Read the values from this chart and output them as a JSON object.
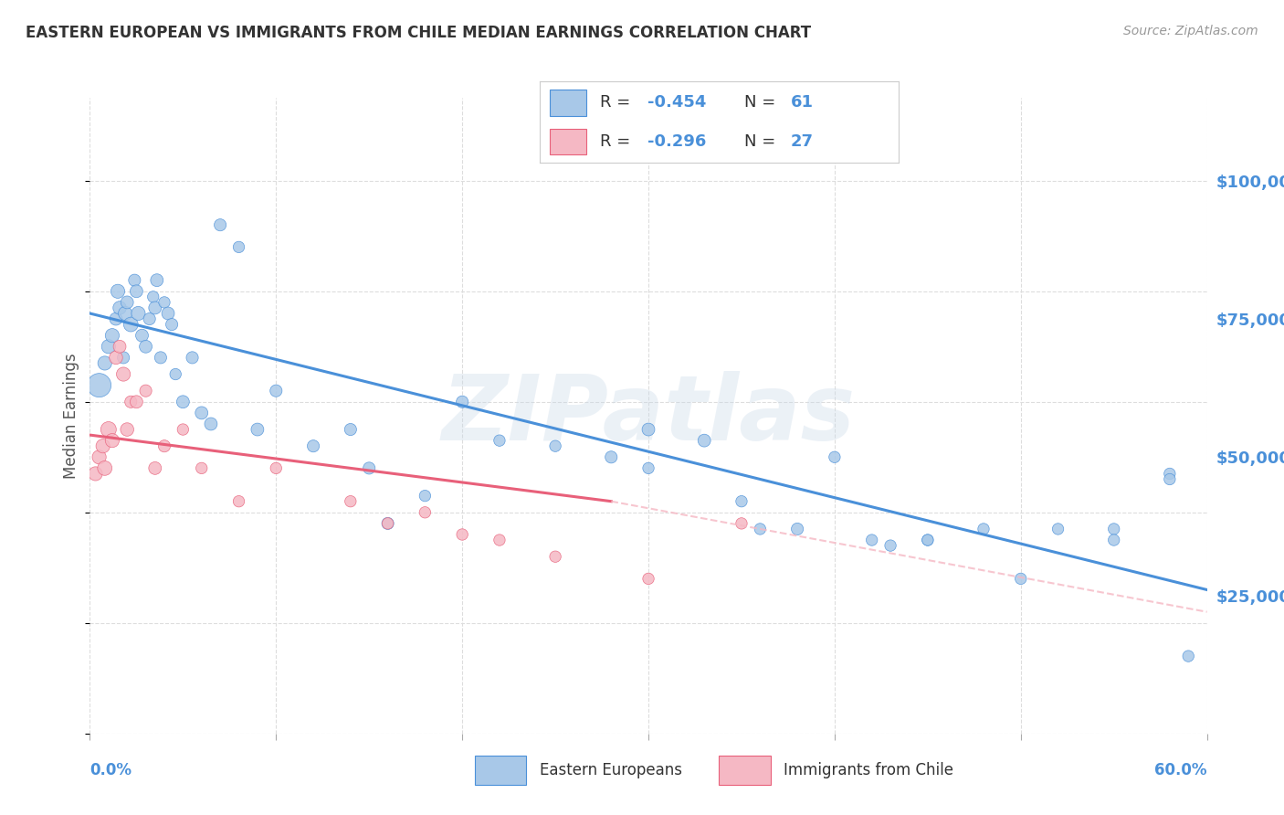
{
  "title": "EASTERN EUROPEAN VS IMMIGRANTS FROM CHILE MEDIAN EARNINGS CORRELATION CHART",
  "source": "Source: ZipAtlas.com",
  "ylabel": "Median Earnings",
  "y_ticks": [
    25000,
    50000,
    75000,
    100000
  ],
  "y_tick_labels": [
    "$25,000",
    "$50,000",
    "$75,000",
    "$100,000"
  ],
  "x_range": [
    0.0,
    0.6
  ],
  "y_range": [
    0,
    115000
  ],
  "watermark": "ZIPatlas",
  "legend_entries": [
    {
      "color": "#a8c8e8",
      "R": "-0.454",
      "N": "61"
    },
    {
      "color": "#f5b8c4",
      "R": "-0.296",
      "N": "27"
    }
  ],
  "legend_labels": [
    "Eastern Europeans",
    "Immigrants from Chile"
  ],
  "blue_scatter_x": [
    0.005,
    0.008,
    0.01,
    0.012,
    0.014,
    0.015,
    0.016,
    0.018,
    0.019,
    0.02,
    0.022,
    0.024,
    0.025,
    0.026,
    0.028,
    0.03,
    0.032,
    0.034,
    0.035,
    0.036,
    0.038,
    0.04,
    0.042,
    0.044,
    0.046,
    0.05,
    0.055,
    0.06,
    0.065,
    0.07,
    0.08,
    0.09,
    0.1,
    0.12,
    0.14,
    0.15,
    0.16,
    0.18,
    0.2,
    0.22,
    0.25,
    0.28,
    0.3,
    0.35,
    0.38,
    0.4,
    0.43,
    0.45,
    0.5,
    0.55,
    0.58,
    0.3,
    0.33,
    0.36,
    0.42,
    0.45,
    0.48,
    0.52,
    0.55,
    0.58,
    0.59
  ],
  "blue_scatter_y": [
    63000,
    67000,
    70000,
    72000,
    75000,
    80000,
    77000,
    68000,
    76000,
    78000,
    74000,
    82000,
    80000,
    76000,
    72000,
    70000,
    75000,
    79000,
    77000,
    82000,
    68000,
    78000,
    76000,
    74000,
    65000,
    60000,
    68000,
    58000,
    56000,
    92000,
    88000,
    55000,
    62000,
    52000,
    55000,
    48000,
    38000,
    43000,
    60000,
    53000,
    52000,
    50000,
    48000,
    42000,
    37000,
    50000,
    34000,
    35000,
    28000,
    37000,
    47000,
    55000,
    53000,
    37000,
    35000,
    35000,
    37000,
    37000,
    35000,
    46000,
    14000
  ],
  "blue_bubble_sizes": [
    350,
    120,
    120,
    120,
    100,
    120,
    110,
    90,
    120,
    100,
    130,
    90,
    100,
    120,
    100,
    100,
    90,
    80,
    100,
    100,
    90,
    80,
    100,
    90,
    80,
    100,
    90,
    100,
    100,
    90,
    80,
    100,
    90,
    90,
    90,
    90,
    90,
    80,
    90,
    80,
    80,
    90,
    80,
    80,
    90,
    80,
    80,
    80,
    80,
    80,
    80,
    100,
    100,
    80,
    80,
    80,
    80,
    80,
    80,
    80,
    80
  ],
  "pink_scatter_x": [
    0.003,
    0.005,
    0.007,
    0.008,
    0.01,
    0.012,
    0.014,
    0.016,
    0.018,
    0.02,
    0.022,
    0.025,
    0.03,
    0.035,
    0.04,
    0.05,
    0.06,
    0.08,
    0.1,
    0.14,
    0.16,
    0.18,
    0.2,
    0.22,
    0.25,
    0.3,
    0.35
  ],
  "pink_scatter_y": [
    47000,
    50000,
    52000,
    48000,
    55000,
    53000,
    68000,
    70000,
    65000,
    55000,
    60000,
    60000,
    62000,
    48000,
    52000,
    55000,
    48000,
    42000,
    48000,
    42000,
    38000,
    40000,
    36000,
    35000,
    32000,
    28000,
    38000
  ],
  "pink_bubble_sizes": [
    120,
    120,
    120,
    130,
    150,
    120,
    110,
    100,
    120,
    110,
    90,
    100,
    90,
    100,
    90,
    80,
    80,
    80,
    80,
    80,
    80,
    80,
    80,
    80,
    80,
    80,
    80
  ],
  "blue_line_x": [
    0.0,
    0.6
  ],
  "blue_line_y": [
    76000,
    26000
  ],
  "pink_line_x": [
    0.0,
    0.28
  ],
  "pink_line_y": [
    54000,
    42000
  ],
  "pink_dashed_line_x": [
    0.28,
    0.6
  ],
  "pink_dashed_line_y": [
    42000,
    22000
  ],
  "blue_scatter_color": "#a8c8e8",
  "pink_scatter_color": "#f5b8c4",
  "blue_line_color": "#4a90d9",
  "pink_line_color": "#e8607a",
  "pink_dashed_color": "#f5b8c4",
  "grid_color": "#dddddd",
  "background_color": "#ffffff",
  "title_color": "#333333",
  "tick_label_color": "#4a90d9"
}
